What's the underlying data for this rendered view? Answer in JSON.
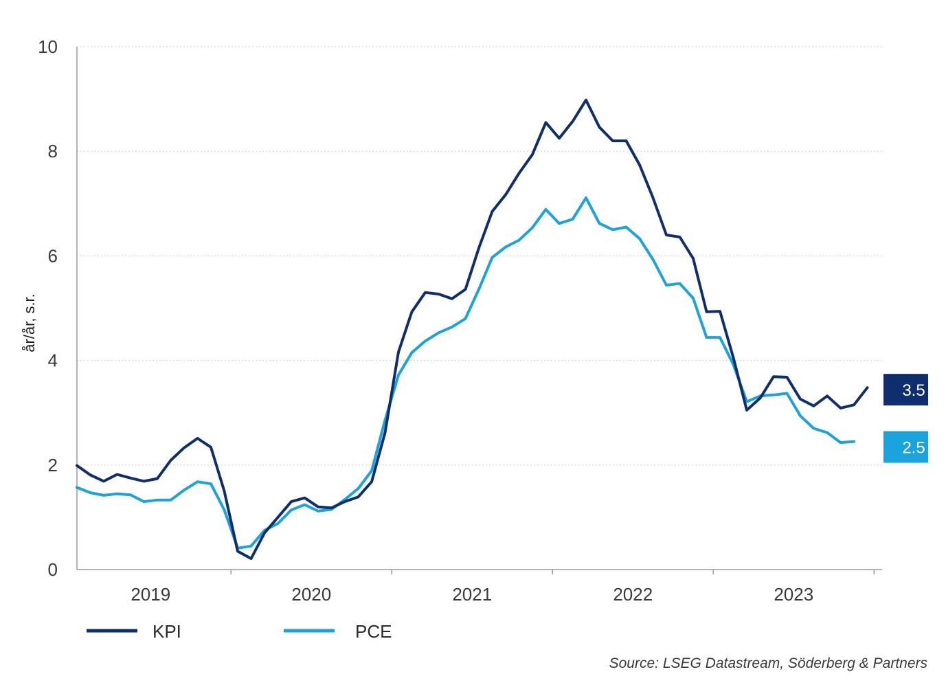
{
  "chart_data": {
    "type": "line",
    "ylabel": "år/år, s.r.",
    "ylim": [
      0,
      10
    ],
    "yticks": [
      "0",
      "2",
      "4",
      "6",
      "8",
      "10"
    ],
    "grid": "horizontal dotted",
    "x_year_labels": [
      "2019",
      "2020",
      "2021",
      "2022",
      "2023"
    ],
    "x_start": "2019-01",
    "series": [
      {
        "name": "KPI",
        "color": "#0e2e6e",
        "values": [
          1.99,
          1.81,
          1.69,
          1.82,
          1.75,
          1.69,
          1.74,
          2.09,
          2.33,
          2.51,
          2.34,
          1.5,
          0.35,
          0.21,
          0.7,
          1.0,
          1.3,
          1.37,
          1.2,
          1.18,
          1.3,
          1.39,
          1.68,
          2.62,
          4.16,
          4.93,
          5.3,
          5.27,
          5.18,
          5.36,
          6.15,
          6.85,
          7.17,
          7.58,
          7.94,
          8.55,
          8.25,
          8.57,
          8.98,
          8.46,
          8.2,
          8.2,
          7.74,
          7.11,
          6.4,
          6.36,
          5.95,
          4.93,
          4.94,
          4.05,
          3.05,
          3.28,
          3.69,
          3.68,
          3.26,
          3.13,
          3.32,
          3.09,
          3.15,
          3.48
        ]
      },
      {
        "name": "PCE",
        "color": "#1aa3dd",
        "values": [
          1.57,
          1.47,
          1.42,
          1.45,
          1.43,
          1.3,
          1.33,
          1.33,
          1.52,
          1.68,
          1.64,
          1.14,
          0.41,
          0.45,
          0.75,
          0.88,
          1.14,
          1.24,
          1.12,
          1.15,
          1.34,
          1.55,
          1.89,
          2.86,
          3.72,
          4.15,
          4.37,
          4.53,
          4.64,
          4.8,
          5.36,
          5.97,
          6.17,
          6.3,
          6.54,
          6.89,
          6.62,
          6.7,
          7.11,
          6.62,
          6.5,
          6.55,
          6.33,
          5.93,
          5.44,
          5.47,
          5.19,
          4.44,
          4.44,
          3.92,
          3.21,
          3.32,
          3.34,
          3.37,
          2.94,
          2.7,
          2.62,
          2.43,
          2.45
        ]
      }
    ],
    "end_labels": [
      "3.5",
      "2.5"
    ],
    "source": "Source: LSEG Datastream, Söderberg & Partners"
  },
  "colors": {
    "kpi": "#0e2e6e",
    "pce": "#1aa3dd",
    "axis": "#9a9a9a",
    "grid": "#d0d0d0"
  }
}
